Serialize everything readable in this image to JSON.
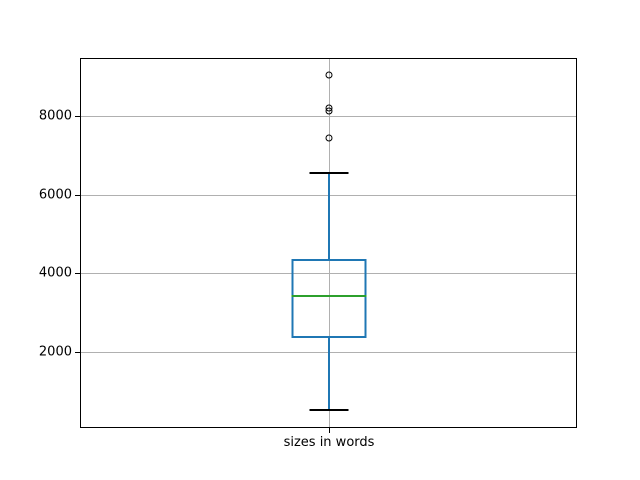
{
  "figure": {
    "background": "#ffffff",
    "title": ""
  },
  "chart_data": {
    "type": "boxplot",
    "title": "",
    "xlabel": "",
    "ylabel": "",
    "categories": [
      "sizes in words"
    ],
    "series": [
      {
        "name": "sizes in words",
        "whisker_low": 540,
        "q1": 2370,
        "median": 3420,
        "q3": 4370,
        "whisker_high": 6540,
        "outliers": [
          7430,
          8130,
          8200,
          9030
        ]
      }
    ],
    "yticks": [
      2000,
      4000,
      6000,
      8000
    ],
    "ytick_labels": [
      "2000",
      "4000",
      "6000",
      "8000"
    ],
    "ylim": [
      100,
      9440
    ],
    "grid": true,
    "legend_position": "none",
    "colors": {
      "box": "#1f77b4",
      "whisker": "#1f77b4",
      "median": "#2ca02c",
      "cap": "#000000",
      "flier_edge": "#000000",
      "grid": "#b0b0b0",
      "spine": "#000000",
      "tick_label": "#000000"
    }
  }
}
